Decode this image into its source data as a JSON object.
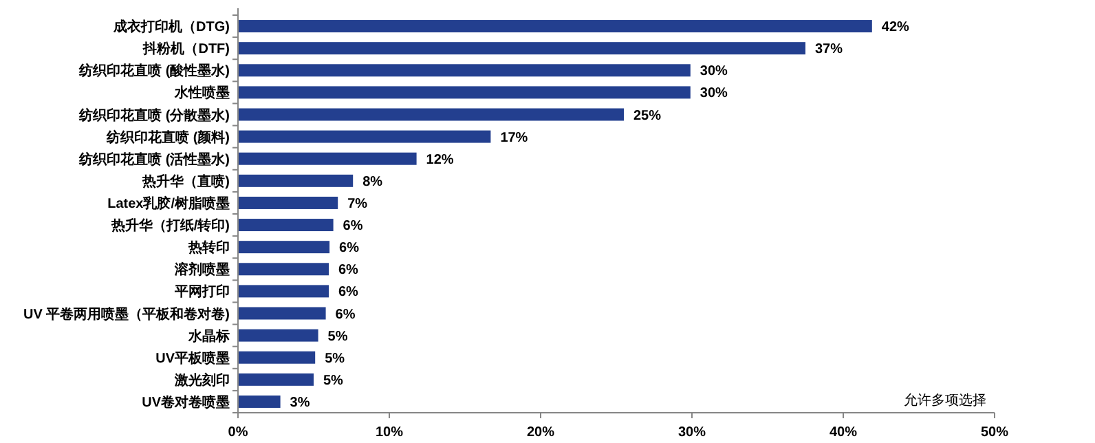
{
  "chart_data": {
    "type": "bar",
    "orientation": "horizontal",
    "categories": [
      "成衣打印机（DTG)",
      "抖粉机（DTF)",
      "纺织印花直喷 (酸性墨水)",
      "水性喷墨",
      "纺织印花直喷 (分散墨水)",
      "纺织印花直喷 (颜料)",
      "纺织印花直喷 (活性墨水)",
      "热升华（直喷)",
      "Latex乳胶/树脂喷墨",
      "热升华（打纸/转印)",
      "热转印",
      "溶剂喷墨",
      "平网打印",
      "UV 平卷两用喷墨（平板和卷对卷)",
      "水晶标",
      "UV平板喷墨",
      "激光刻印",
      "UV卷对卷喷墨"
    ],
    "series": [
      {
        "color": "#233f8f",
        "values": [
          41.9,
          37.5,
          29.9,
          29.9,
          25.5,
          16.7,
          11.8,
          7.6,
          6.6,
          6.3,
          6.05,
          6.0,
          6.0,
          5.8,
          5.3,
          5.1,
          5.0,
          2.8
        ],
        "value_labels": [
          "42%",
          "37%",
          "30%",
          "30%",
          "25%",
          "17%",
          "12%",
          "8%",
          "7%",
          "6%",
          "6%",
          "6%",
          "6%",
          "6%",
          "5%",
          "5%",
          "5%",
          "3%"
        ]
      }
    ],
    "xlim": [
      0,
      50
    ],
    "xticks": [
      {
        "value": 0,
        "label": "0%"
      },
      {
        "value": 10,
        "label": "10%"
      },
      {
        "value": 20,
        "label": "20%"
      },
      {
        "value": 30,
        "label": "30%"
      },
      {
        "value": 40,
        "label": "40%"
      },
      {
        "value": 50,
        "label": "50%"
      }
    ],
    "grid": false,
    "annotations": [
      "允许多项选择"
    ]
  }
}
